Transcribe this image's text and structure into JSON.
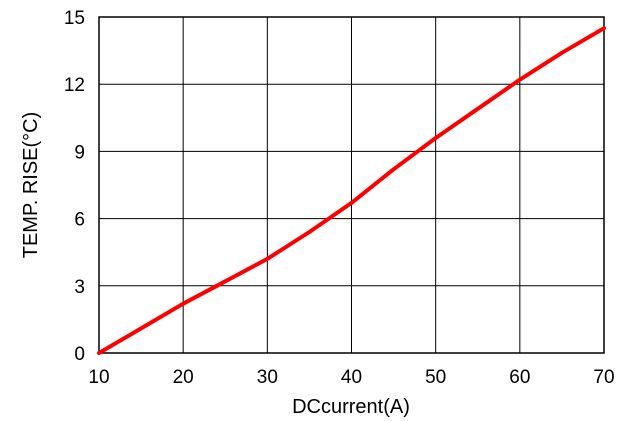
{
  "chart_data": {
    "type": "line",
    "title": "",
    "xlabel": "DCcurrent(A)",
    "ylabel": "TEMP. RISE(°C)",
    "xlim": [
      10,
      70
    ],
    "ylim": [
      0,
      15
    ],
    "xticks": [
      10,
      20,
      30,
      40,
      50,
      60,
      70
    ],
    "yticks": [
      0,
      3,
      6,
      9,
      12,
      15
    ],
    "grid": true,
    "legend": "none",
    "series": [
      {
        "color": "#ff0000",
        "x": [
          10,
          15,
          20,
          25,
          30,
          35,
          40,
          45,
          50,
          55,
          60,
          65,
          70
        ],
        "y": [
          0.0,
          1.1,
          2.2,
          3.2,
          4.2,
          5.4,
          6.7,
          8.2,
          9.6,
          10.9,
          12.2,
          13.4,
          14.5
        ]
      }
    ]
  }
}
